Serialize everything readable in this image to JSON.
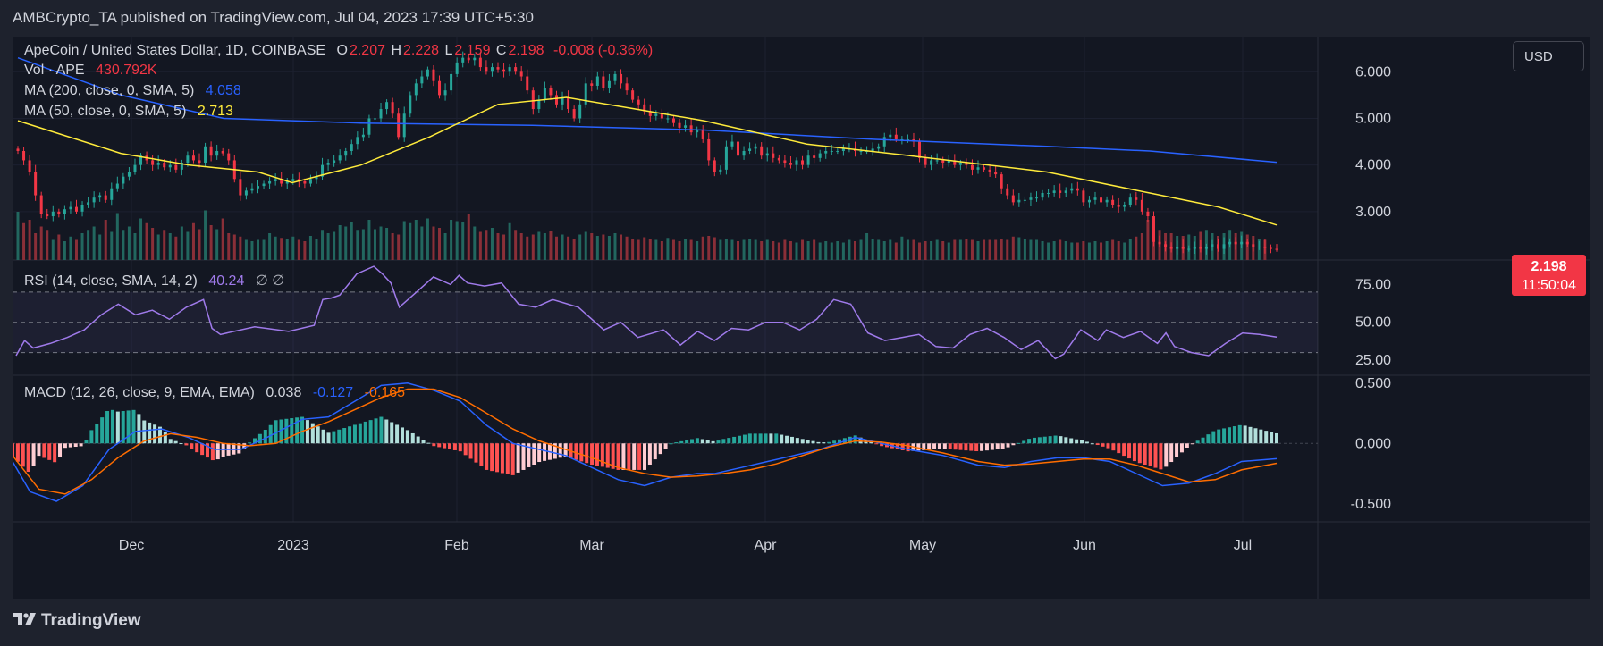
{
  "header": {
    "text": "AMBCrypto_TA published on TradingView.com, Jul 04, 2023 17:39 UTC+5:30"
  },
  "legend": {
    "symbol": "ApeCoin / United States Dollar, 1D, COINBASE",
    "o_label": "O",
    "o": "2.207",
    "h_label": "H",
    "h": "2.228",
    "l_label": "L",
    "l": "2.159",
    "c_label": "C",
    "c": "2.198",
    "change": "-0.008 (-0.36%)",
    "vol_label": "Vol · APE",
    "vol": "430.792K",
    "ma200_label": "MA (200, close, 0, SMA, 5)",
    "ma200": "4.058",
    "ma50_label": "MA (50, close, 0, SMA, 5)",
    "ma50": "2.713",
    "rsi_label": "RSI (14, close, SMA, 14, 2)",
    "rsi": "40.24",
    "rsi_extra": "∅ ∅",
    "macd_label": "MACD (12, 26, close, 9, EMA, EMA)",
    "macd": "0.038",
    "macd_signal": "-0.127",
    "macd_hist": "-0.165"
  },
  "currency": "USD",
  "price_badge": {
    "price": "2.198",
    "countdown": "11:50:04"
  },
  "brand": "TradingView",
  "colors": {
    "up": "#26a69a",
    "down": "#f23645",
    "ma200": "#2962ff",
    "ma50": "#ffeb3b",
    "rsi": "#9f7aea",
    "macd": "#2962ff",
    "signal": "#ff6d00",
    "bg": "#131722"
  },
  "chart_data": [
    {
      "type": "candlestick",
      "title": "ApeCoin / United States Dollar, 1D, COINBASE",
      "x_ticks": [
        "Dec",
        "2023",
        "Feb",
        "Mar",
        "Apr",
        "May",
        "Jun",
        "Jul"
      ],
      "y_ticks": [
        "6.000",
        "5.000",
        "4.000",
        "3.000"
      ],
      "ylim": [
        2.0,
        6.6
      ],
      "close_series": [
        4.3,
        4.1,
        3.85,
        3.35,
        2.95,
        2.9,
        3.0,
        2.95,
        3.05,
        3.1,
        3.0,
        3.15,
        3.2,
        3.3,
        3.35,
        3.25,
        3.5,
        3.6,
        3.75,
        3.85,
        4.0,
        4.2,
        4.1,
        4.0,
        4.05,
        3.95,
        4.0,
        3.9,
        4.05,
        4.2,
        4.1,
        4.05,
        4.4,
        4.2,
        4.3,
        4.25,
        4.1,
        3.7,
        3.35,
        3.45,
        3.5,
        3.55,
        3.6,
        3.65,
        3.7,
        3.6,
        3.65,
        3.7,
        3.65,
        3.6,
        3.7,
        3.75,
        4.0,
        4.05,
        4.1,
        4.2,
        4.3,
        4.45,
        4.6,
        4.65,
        5.0,
        5.0,
        5.2,
        5.35,
        5.1,
        4.6,
        5.1,
        5.5,
        5.75,
        5.9,
        6.05,
        5.8,
        5.5,
        5.6,
        5.95,
        6.2,
        6.3,
        6.25,
        6.3,
        6.1,
        6.0,
        6.1,
        6.05,
        6.0,
        6.1,
        6.0,
        5.9,
        5.6,
        5.2,
        5.4,
        5.65,
        5.5,
        5.3,
        5.45,
        5.2,
        5.0,
        5.3,
        5.75,
        5.7,
        5.9,
        5.65,
        5.8,
        5.95,
        5.75,
        5.6,
        5.4,
        5.3,
        5.15,
        5.05,
        5.1,
        5.0,
        5.0,
        4.9,
        4.8,
        4.85,
        4.7,
        4.75,
        4.55,
        4.1,
        3.85,
        3.9,
        4.4,
        4.5,
        4.2,
        4.3,
        4.35,
        4.4,
        4.2,
        4.25,
        4.15,
        4.1,
        4.05,
        4.0,
        4.1,
        4.0,
        4.2,
        4.15,
        4.25,
        4.3,
        4.3,
        4.3,
        4.35,
        4.35,
        4.3,
        4.3,
        4.3,
        4.35,
        4.4,
        4.6,
        4.65,
        4.55,
        4.55,
        4.55,
        4.5,
        4.15,
        4.0,
        4.1,
        4.1,
        4.05,
        4.1,
        4.0,
        4.05,
        4.0,
        3.9,
        3.95,
        3.9,
        3.85,
        3.8,
        3.5,
        3.35,
        3.2,
        3.25,
        3.25,
        3.3,
        3.3,
        3.4,
        3.4,
        3.45,
        3.4,
        3.45,
        3.5,
        3.45,
        3.2,
        3.25,
        3.3,
        3.2,
        3.25,
        3.15,
        3.1,
        3.15,
        3.3,
        3.25,
        3.0,
        2.9,
        2.35,
        2.3,
        2.25,
        2.2,
        2.25,
        2.2,
        2.2,
        2.25,
        2.2,
        2.25,
        2.3,
        2.2,
        2.3,
        2.35,
        2.3,
        2.35,
        2.3,
        2.25,
        2.25,
        2.22,
        2.2,
        2.198
      ],
      "ma200": [
        [
          0,
          6.3
        ],
        [
          30,
          5.5
        ],
        [
          60,
          5.0
        ],
        [
          100,
          4.9
        ],
        [
          150,
          4.85
        ],
        [
          200,
          4.75
        ],
        [
          250,
          4.55
        ],
        [
          300,
          4.4
        ],
        [
          330,
          4.3
        ],
        [
          367,
          4.058
        ]
      ],
      "ma50": [
        [
          0,
          4.95
        ],
        [
          30,
          4.25
        ],
        [
          50,
          4.0
        ],
        [
          70,
          3.85
        ],
        [
          80,
          3.62
        ],
        [
          100,
          4.0
        ],
        [
          120,
          4.6
        ],
        [
          140,
          5.3
        ],
        [
          160,
          5.45
        ],
        [
          180,
          5.2
        ],
        [
          200,
          4.95
        ],
        [
          230,
          4.45
        ],
        [
          260,
          4.2
        ],
        [
          300,
          3.85
        ],
        [
          330,
          3.4
        ],
        [
          350,
          3.1
        ],
        [
          367,
          2.713
        ]
      ],
      "volume": [
        72,
        55,
        60,
        40,
        50,
        45,
        30,
        38,
        28,
        35,
        30,
        40,
        45,
        50,
        38,
        60,
        42,
        70,
        45,
        50,
        40,
        62,
        55,
        48,
        38,
        45,
        40,
        35,
        50,
        42,
        55,
        46,
        74,
        52,
        46,
        62,
        40,
        38,
        35,
        30,
        28,
        30,
        30,
        40,
        35,
        33,
        32,
        35,
        30,
        28,
        36,
        32,
        45,
        40,
        42,
        52,
        50,
        56,
        45,
        46,
        60,
        46,
        50,
        48,
        40,
        38,
        58,
        55,
        60,
        50,
        62,
        50,
        48,
        40,
        60,
        58,
        56,
        68,
        50,
        42,
        45,
        48,
        40,
        38,
        55,
        45,
        40,
        35,
        38,
        42,
        40,
        44,
        35,
        38,
        35,
        32,
        38,
        42,
        40,
        36,
        38,
        36,
        40,
        38,
        35,
        32,
        30,
        34,
        32,
        30,
        28,
        33,
        30,
        28,
        32,
        30,
        28,
        35,
        36,
        34,
        30,
        32,
        30,
        28,
        30,
        32,
        30,
        28,
        30,
        28,
        26,
        30,
        28,
        26,
        30,
        28,
        30,
        26,
        28,
        26,
        28,
        26,
        30,
        28,
        30,
        40,
        32,
        30,
        28,
        30,
        26,
        35,
        30,
        30,
        26,
        28,
        28,
        30,
        28,
        26,
        30,
        30,
        32,
        30,
        28,
        30,
        30,
        30,
        32,
        30,
        35,
        34,
        32,
        30,
        30,
        28,
        26,
        28,
        30,
        28,
        26,
        26,
        28,
        26,
        28,
        26,
        28,
        30,
        28,
        26,
        32,
        35,
        40,
        60,
        58,
        45,
        40,
        40,
        36,
        36,
        38,
        36,
        42,
        45,
        40,
        36,
        40,
        45,
        40,
        42,
        38,
        36,
        32,
        30
      ]
    },
    {
      "type": "line",
      "title": "RSI (14, close, SMA, 14, 2)",
      "y_ticks": [
        "75.00",
        "50.00",
        "25.00"
      ],
      "levels": [
        70,
        50,
        30
      ],
      "ylim": [
        15,
        90
      ],
      "values": [
        [
          0,
          28
        ],
        [
          5,
          38
        ],
        [
          10,
          33
        ],
        [
          20,
          36
        ],
        [
          30,
          40
        ],
        [
          40,
          45
        ],
        [
          50,
          55
        ],
        [
          60,
          62
        ],
        [
          70,
          55
        ],
        [
          80,
          58
        ],
        [
          90,
          52
        ],
        [
          100,
          60
        ],
        [
          110,
          65
        ],
        [
          115,
          46
        ],
        [
          120,
          42
        ],
        [
          140,
          47
        ],
        [
          160,
          44
        ],
        [
          175,
          48
        ],
        [
          180,
          65
        ],
        [
          185,
          66
        ],
        [
          190,
          68
        ],
        [
          200,
          82
        ],
        [
          210,
          87
        ],
        [
          215,
          82
        ],
        [
          220,
          76
        ],
        [
          225,
          60
        ],
        [
          235,
          70
        ],
        [
          245,
          80
        ],
        [
          255,
          75
        ],
        [
          260,
          81
        ],
        [
          265,
          76
        ],
        [
          275,
          74
        ],
        [
          285,
          76
        ],
        [
          295,
          62
        ],
        [
          305,
          60
        ],
        [
          315,
          65
        ],
        [
          330,
          60
        ],
        [
          345,
          45
        ],
        [
          355,
          50
        ],
        [
          365,
          40
        ],
        [
          380,
          45
        ],
        [
          390,
          35
        ],
        [
          400,
          44
        ],
        [
          410,
          38
        ],
        [
          420,
          46
        ],
        [
          430,
          45
        ],
        [
          440,
          50
        ],
        [
          450,
          50
        ],
        [
          460,
          45
        ],
        [
          470,
          52
        ],
        [
          480,
          65
        ],
        [
          490,
          62
        ],
        [
          500,
          43
        ],
        [
          510,
          38
        ],
        [
          520,
          40
        ],
        [
          530,
          42
        ],
        [
          540,
          34
        ],
        [
          550,
          33
        ],
        [
          560,
          42
        ],
        [
          570,
          46
        ],
        [
          580,
          40
        ],
        [
          590,
          32
        ],
        [
          600,
          38
        ],
        [
          610,
          26
        ],
        [
          615,
          29
        ],
        [
          625,
          45
        ],
        [
          635,
          38
        ],
        [
          640,
          45
        ],
        [
          650,
          40
        ],
        [
          660,
          44
        ],
        [
          670,
          36
        ],
        [
          675,
          43
        ],
        [
          680,
          34
        ],
        [
          690,
          30
        ],
        [
          700,
          28
        ],
        [
          710,
          36
        ],
        [
          720,
          43
        ],
        [
          730,
          42
        ],
        [
          740,
          40.24
        ]
      ]
    },
    {
      "type": "line",
      "title": "MACD (12, 26, close, 9, EMA, EMA)",
      "y_ticks": [
        "0.500",
        "0.000",
        "-0.500"
      ],
      "ylim": [
        -0.65,
        0.55
      ],
      "macd": [
        [
          0,
          -0.15
        ],
        [
          20,
          -0.4
        ],
        [
          50,
          -0.48
        ],
        [
          80,
          -0.35
        ],
        [
          110,
          -0.05
        ],
        [
          140,
          0.1
        ],
        [
          170,
          0.12
        ],
        [
          200,
          0.05
        ],
        [
          230,
          -0.05
        ],
        [
          260,
          -0.05
        ],
        [
          290,
          0.05
        ],
        [
          330,
          0.2
        ],
        [
          360,
          0.22
        ],
        [
          390,
          0.35
        ],
        [
          420,
          0.48
        ],
        [
          450,
          0.5
        ],
        [
          480,
          0.44
        ],
        [
          510,
          0.35
        ],
        [
          540,
          0.15
        ],
        [
          570,
          0.0
        ],
        [
          600,
          -0.05
        ],
        [
          630,
          -0.1
        ],
        [
          660,
          -0.2
        ],
        [
          690,
          -0.3
        ],
        [
          720,
          -0.35
        ],
        [
          750,
          -0.28
        ],
        [
          780,
          -0.25
        ],
        [
          800,
          -0.25
        ],
        [
          830,
          -0.2
        ],
        [
          860,
          -0.15
        ],
        [
          890,
          -0.1
        ],
        [
          920,
          -0.05
        ],
        [
          960,
          0.05
        ],
        [
          990,
          0.0
        ],
        [
          1020,
          -0.05
        ],
        [
          1060,
          -0.1
        ],
        [
          1100,
          -0.18
        ],
        [
          1130,
          -0.2
        ],
        [
          1160,
          -0.15
        ],
        [
          1190,
          -0.12
        ],
        [
          1220,
          -0.12
        ],
        [
          1250,
          -0.15
        ],
        [
          1280,
          -0.25
        ],
        [
          1310,
          -0.35
        ],
        [
          1340,
          -0.33
        ],
        [
          1370,
          -0.25
        ],
        [
          1400,
          -0.15
        ],
        [
          1440,
          -0.127
        ]
      ],
      "signal": [
        [
          0,
          -0.1
        ],
        [
          30,
          -0.38
        ],
        [
          60,
          -0.42
        ],
        [
          90,
          -0.3
        ],
        [
          120,
          -0.12
        ],
        [
          150,
          0.02
        ],
        [
          180,
          0.08
        ],
        [
          210,
          0.05
        ],
        [
          240,
          0.0
        ],
        [
          270,
          -0.02
        ],
        [
          300,
          0.0
        ],
        [
          330,
          0.1
        ],
        [
          360,
          0.18
        ],
        [
          390,
          0.28
        ],
        [
          420,
          0.38
        ],
        [
          450,
          0.45
        ],
        [
          480,
          0.45
        ],
        [
          510,
          0.38
        ],
        [
          540,
          0.25
        ],
        [
          570,
          0.12
        ],
        [
          600,
          0.02
        ],
        [
          630,
          -0.05
        ],
        [
          660,
          -0.12
        ],
        [
          690,
          -0.2
        ],
        [
          720,
          -0.25
        ],
        [
          750,
          -0.28
        ],
        [
          780,
          -0.27
        ],
        [
          810,
          -0.25
        ],
        [
          840,
          -0.22
        ],
        [
          870,
          -0.17
        ],
        [
          900,
          -0.1
        ],
        [
          930,
          -0.03
        ],
        [
          960,
          0.02
        ],
        [
          990,
          0.01
        ],
        [
          1020,
          -0.02
        ],
        [
          1060,
          -0.08
        ],
        [
          1100,
          -0.15
        ],
        [
          1130,
          -0.18
        ],
        [
          1160,
          -0.17
        ],
        [
          1190,
          -0.15
        ],
        [
          1220,
          -0.13
        ],
        [
          1250,
          -0.13
        ],
        [
          1280,
          -0.18
        ],
        [
          1310,
          -0.25
        ],
        [
          1340,
          -0.32
        ],
        [
          1370,
          -0.3
        ],
        [
          1400,
          -0.22
        ],
        [
          1440,
          -0.165
        ]
      ],
      "histogram_sign": "teal above zero, salmon/red below zero"
    }
  ]
}
